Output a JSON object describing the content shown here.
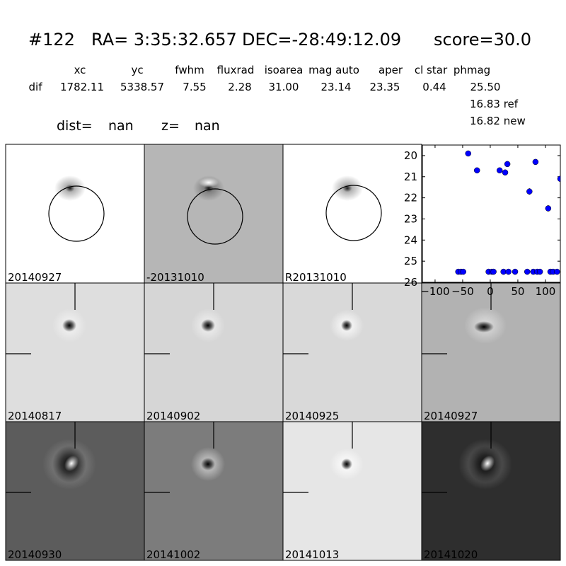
{
  "header": {
    "id": "#122",
    "ra": "RA= 3:35:32.657",
    "dec": "DEC=-28:49:12.09",
    "score": "score=30.0"
  },
  "table": {
    "columns": [
      "xc",
      "yc",
      "fwhm",
      "fluxrad",
      "isoarea",
      "mag auto",
      "aper",
      "cl star",
      "phmag"
    ],
    "row": [
      "dif",
      "1782.11",
      "5338.57",
      "7.55",
      "2.28",
      "31.00",
      "23.14",
      "23.35",
      "0.44",
      "25.50"
    ],
    "extra": [
      "16.83 ref",
      "16.82 new"
    ]
  },
  "dist": {
    "label": "dist=",
    "value": "nan"
  },
  "z": {
    "label": "z=",
    "value": "nan"
  },
  "panels": {
    "rows": [
      [
        "20140927",
        "-20131010",
        "R20131010"
      ],
      [
        "20140817",
        "20140902",
        "20140925",
        "20140927"
      ],
      [
        "20140930",
        "20141002",
        "20141013",
        "20141020"
      ]
    ]
  },
  "chart_data": {
    "type": "scatter",
    "color": "#0000ff",
    "x": [
      -58,
      -53,
      -49,
      -40,
      -24,
      -3,
      3,
      6,
      17,
      24,
      27,
      31,
      33,
      45,
      67,
      71,
      78,
      82,
      85,
      90,
      105,
      109,
      114,
      121,
      127
    ],
    "values": [
      25.5,
      25.5,
      25.5,
      19.9,
      20.7,
      25.5,
      25.5,
      25.5,
      20.7,
      25.5,
      20.8,
      20.4,
      25.5,
      25.5,
      25.5,
      21.7,
      25.5,
      20.3,
      25.5,
      25.5,
      22.5,
      25.5,
      25.5,
      25.5,
      21.1
    ],
    "errors": [
      null,
      null,
      null,
      null,
      null,
      null,
      null,
      null,
      null,
      null,
      null,
      null,
      null,
      null,
      null,
      0.15,
      null,
      null,
      null,
      null,
      0.15,
      null,
      null,
      null,
      null
    ],
    "xlim": [
      -123,
      127
    ],
    "ylim": [
      26,
      19.5
    ],
    "xticks": [
      {
        "value": -100,
        "label": "−100"
      },
      {
        "value": -50,
        "label": "−50"
      },
      0,
      50,
      100
    ],
    "yticks": [
      20,
      21,
      22,
      23,
      24,
      25,
      26
    ]
  }
}
